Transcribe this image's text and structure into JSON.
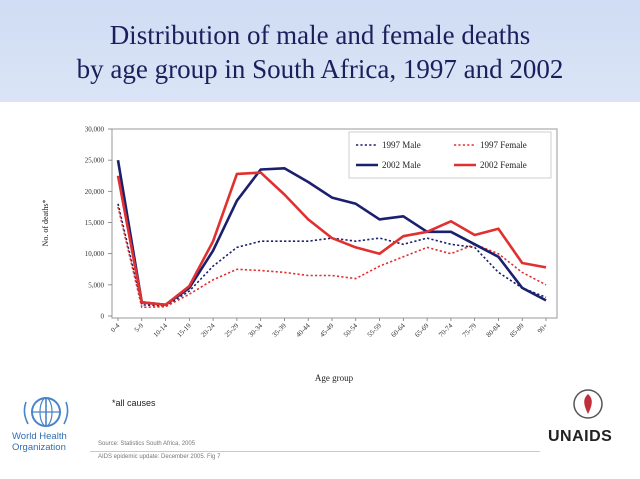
{
  "header": {
    "title_line1": "Distribution of male and female deaths",
    "title_line2": "by age group in South Africa, 1997 and 2002"
  },
  "footer": {
    "note": "*all causes",
    "source_line1": "Source: Statistics South Africa, 2005",
    "source_line2": "AIDS epidemic update: December 2005. Fig 7",
    "who_line1": "World Health",
    "who_line2": "Organization",
    "who_logo_icon": "who-emblem-icon",
    "unaids_label": "UNAIDS",
    "unaids_logo_icon": "unaids-emblem-icon"
  },
  "chart_data": {
    "type": "line",
    "xlabel": "Age group",
    "ylabel": "No. of deaths*",
    "ylim": [
      0,
      30000
    ],
    "yticks": [
      0,
      5000,
      10000,
      15000,
      20000,
      25000,
      30000
    ],
    "ytick_labels": [
      "0",
      "5,000",
      "10,000",
      "15,000",
      "20,000",
      "25,000",
      "30,000"
    ],
    "grid": "none",
    "legend_position": "top-right",
    "categories": [
      "0-4",
      "5-9",
      "10-14",
      "15-19",
      "20-24",
      "25-29",
      "30-34",
      "35-39",
      "40-44",
      "45-49",
      "50-54",
      "55-59",
      "60-64",
      "65-69",
      "70-74",
      "75-79",
      "80-84",
      "85-89",
      "90+"
    ],
    "series": [
      {
        "name": "1997 Male",
        "color": "#1a1f6e",
        "dash": "dotted",
        "values": [
          18000,
          1800,
          1600,
          4000,
          8000,
          11000,
          12000,
          12000,
          12000,
          12500,
          12000,
          12500,
          11500,
          12500,
          11500,
          11000,
          7000,
          4500,
          3000
        ]
      },
      {
        "name": "1997 Female",
        "color": "#e03030",
        "dash": "dotted",
        "values": [
          17500,
          1400,
          1500,
          3500,
          5800,
          7500,
          7300,
          7000,
          6500,
          6500,
          6000,
          8000,
          9500,
          11000,
          10000,
          11500,
          10000,
          7000,
          5000
        ]
      },
      {
        "name": "2002 Male",
        "color": "#1a1f6e",
        "dash": "solid",
        "values": [
          25000,
          2200,
          1800,
          4500,
          10500,
          18500,
          23500,
          23700,
          21500,
          19000,
          18000,
          15500,
          16000,
          13500,
          13500,
          11500,
          9500,
          4500,
          2500
        ]
      },
      {
        "name": "2002 Female",
        "color": "#e03030",
        "dash": "solid",
        "values": [
          22500,
          2200,
          1800,
          4800,
          12000,
          22800,
          23000,
          19500,
          15500,
          12500,
          11000,
          10000,
          12800,
          13500,
          15200,
          13000,
          14000,
          8500,
          7800
        ]
      }
    ]
  }
}
